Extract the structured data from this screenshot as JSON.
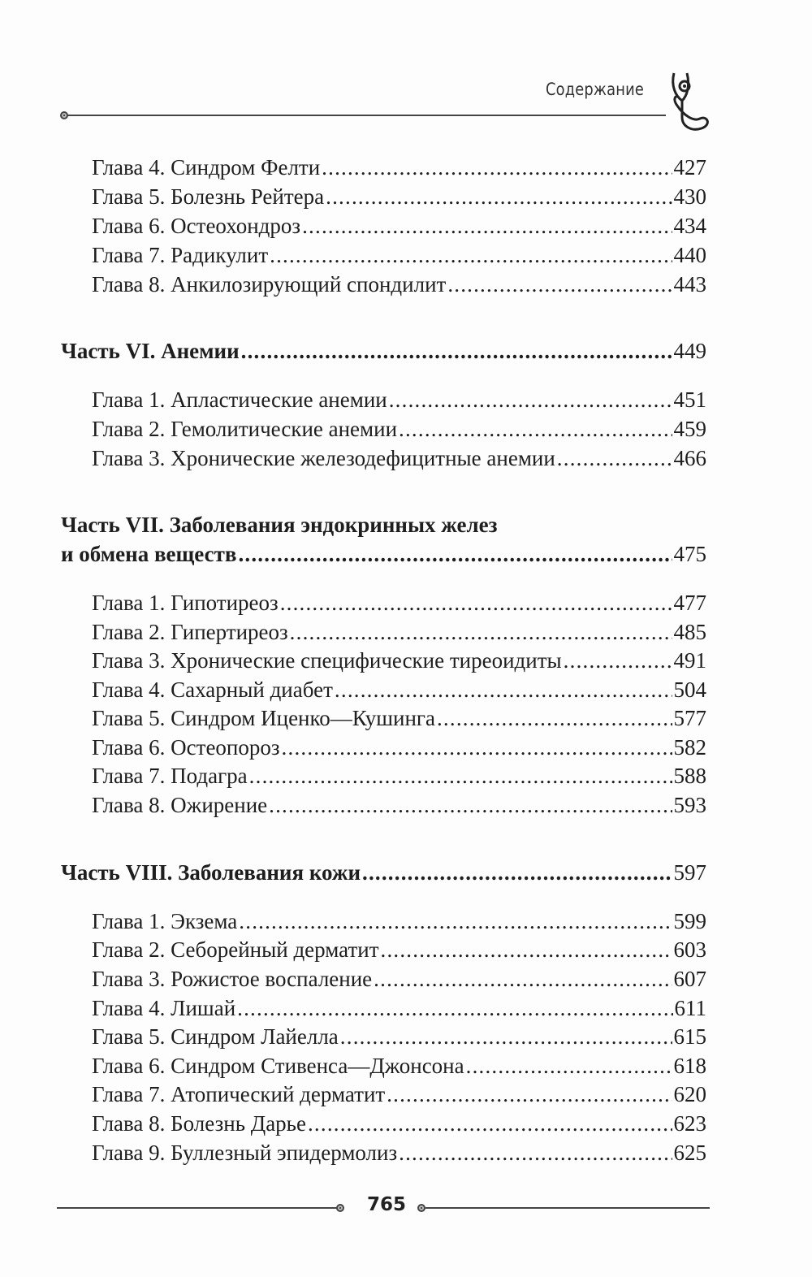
{
  "header": {
    "title": "Содержание",
    "logo": "stethoscope-icon"
  },
  "toc": [
    {
      "level": "chapter",
      "title": "Глава 4. Синдром Фелти",
      "page": "427"
    },
    {
      "level": "chapter",
      "title": "Глава 5. Болезнь Рейтера",
      "page": "430"
    },
    {
      "level": "chapter",
      "title": "Глава 6. Остеохондроз",
      "page": "434"
    },
    {
      "level": "chapter",
      "title": "Глава 7. Радикулит",
      "page": "440"
    },
    {
      "level": "chapter",
      "title": "Глава 8. Анкилозирующий спондилит",
      "page": "443"
    },
    {
      "level": "part",
      "title": "Часть VI. Анемии",
      "page": "449"
    },
    {
      "level": "chapter",
      "title": "Глава 1. Апластические анемии",
      "page": "451"
    },
    {
      "level": "chapter",
      "title": "Глава 2. Гемолитические анемии",
      "page": "459"
    },
    {
      "level": "chapter",
      "title": "Глава 3. Хронические железодефицитные анемии",
      "page": "466"
    },
    {
      "level": "part",
      "title_line1": "Часть VII. Заболевания эндокринных желез",
      "title": "и обмена веществ",
      "page": "475"
    },
    {
      "level": "chapter",
      "title": "Глава 1. Гипотиреоз",
      "page": "477"
    },
    {
      "level": "chapter",
      "title": "Глава 2. Гипертиреоз",
      "page": "485"
    },
    {
      "level": "chapter",
      "title": "Глава 3. Хронические специфические тиреоидиты",
      "page": "491"
    },
    {
      "level": "chapter",
      "title": "Глава 4. Сахарный диабет",
      "page": "504"
    },
    {
      "level": "chapter",
      "title": "Глава 5. Синдром Иценко—Кушинга",
      "page": "577"
    },
    {
      "level": "chapter",
      "title": "Глава 6. Остеопороз",
      "page": "582"
    },
    {
      "level": "chapter",
      "title": "Глава 7. Подагра",
      "page": "588"
    },
    {
      "level": "chapter",
      "title": "Глава 8. Ожирение",
      "page": "593"
    },
    {
      "level": "part",
      "title": "Часть VIII. Заболевания кожи",
      "page": "597"
    },
    {
      "level": "chapter",
      "title": "Глава 1. Экзема",
      "page": "599"
    },
    {
      "level": "chapter",
      "title": "Глава 2. Себорейный дерматит",
      "page": "603"
    },
    {
      "level": "chapter",
      "title": "Глава 3. Рожистое воспаление",
      "page": "607"
    },
    {
      "level": "chapter",
      "title": "Глава 4. Лишай",
      "page": "611"
    },
    {
      "level": "chapter",
      "title": "Глава 5. Синдром Лайелла",
      "page": "615"
    },
    {
      "level": "chapter",
      "title": "Глава 6. Синдром Стивенса—Джонсона",
      "page": "618"
    },
    {
      "level": "chapter",
      "title": "Глава 7. Атопический дерматит",
      "page": "620"
    },
    {
      "level": "chapter",
      "title": "Глава 8. Болезнь Дарье",
      "page": "623"
    },
    {
      "level": "chapter",
      "title": "Глава 9. Буллезный эпидермолиз",
      "page": "625"
    }
  ],
  "footer": {
    "page_number": "765"
  }
}
